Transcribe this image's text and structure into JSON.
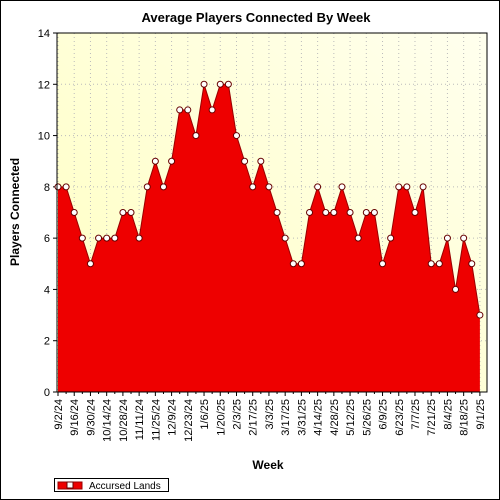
{
  "chart_data": {
    "type": "area",
    "title": "Average Players Connected By Week",
    "x_label": "Week",
    "y_label": "Players Connected",
    "categories": [
      "9/2/24",
      null,
      "9/16/24",
      null,
      "9/30/24",
      null,
      "10/14/24",
      null,
      "10/28/24",
      null,
      "11/11/24",
      null,
      "11/25/24",
      null,
      "12/9/24",
      null,
      "12/23/24",
      null,
      "1/6/25",
      null,
      "1/20/25",
      null,
      "2/3/25",
      null,
      "2/17/25",
      null,
      "3/3/25",
      null,
      "3/17/25",
      null,
      "3/31/25",
      null,
      "4/14/25",
      null,
      "4/28/25",
      null,
      "5/12/25",
      null,
      "5/26/25",
      null,
      "6/9/25",
      null,
      "6/23/25",
      null,
      "7/7/25",
      null,
      "7/21/25",
      null,
      "8/4/25",
      null,
      "8/18/25",
      null,
      "9/1/25"
    ],
    "series": [
      {
        "name": "Accursed Lands",
        "color": "#ee0000",
        "values": [
          8,
          8,
          7,
          6,
          5,
          6,
          6,
          6,
          7,
          7,
          6,
          8,
          9,
          8,
          9,
          11,
          11,
          10,
          12,
          11,
          12,
          12,
          10,
          9,
          8,
          9,
          8,
          7,
          6,
          5,
          5,
          7,
          8,
          7,
          7,
          8,
          7,
          6,
          7,
          7,
          5,
          6,
          8,
          8,
          7,
          8,
          5,
          5,
          6,
          4,
          6,
          5,
          3
        ]
      }
    ],
    "ylim": [
      0,
      14
    ],
    "yticks": [
      0,
      2,
      4,
      6,
      8,
      10,
      12,
      14
    ],
    "grid": true,
    "legend": "bottom-left"
  }
}
